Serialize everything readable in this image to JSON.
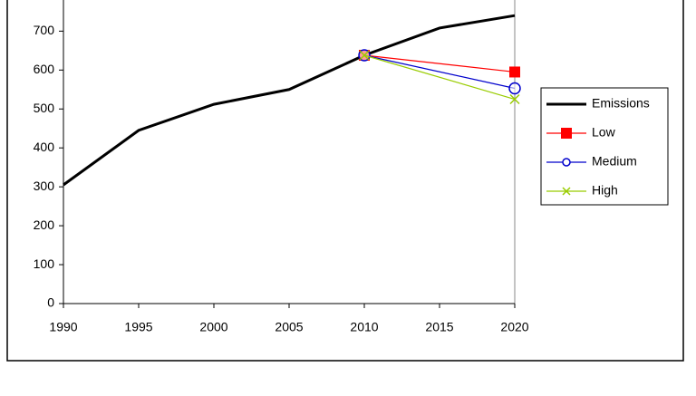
{
  "chart_data": {
    "type": "line",
    "series": [
      {
        "name": "Emissions",
        "color": "#000000",
        "x": [
          1990,
          1995,
          2000,
          2005,
          2010,
          2015,
          2020
        ],
        "values": [
          305,
          445,
          512,
          550,
          638,
          708,
          740
        ],
        "marker": "none"
      },
      {
        "name": "Low",
        "color": "#ff0000",
        "x": [
          2010,
          2020
        ],
        "values": [
          638,
          595
        ],
        "marker": "square"
      },
      {
        "name": "Medium",
        "color": "#0000cc",
        "x": [
          2010,
          2020
        ],
        "values": [
          638,
          553
        ],
        "marker": "circle"
      },
      {
        "name": "High",
        "color": "#99cc00",
        "x": [
          2010,
          2020
        ],
        "values": [
          638,
          525
        ],
        "marker": "x"
      }
    ],
    "xlim": [
      1990,
      2020
    ],
    "xticks": [
      1990,
      1995,
      2000,
      2005,
      2010,
      2015,
      2020
    ],
    "ylim": [
      0,
      780
    ],
    "yticks": [
      0,
      100,
      200,
      300,
      400,
      500,
      600,
      700
    ],
    "legend": "right"
  }
}
